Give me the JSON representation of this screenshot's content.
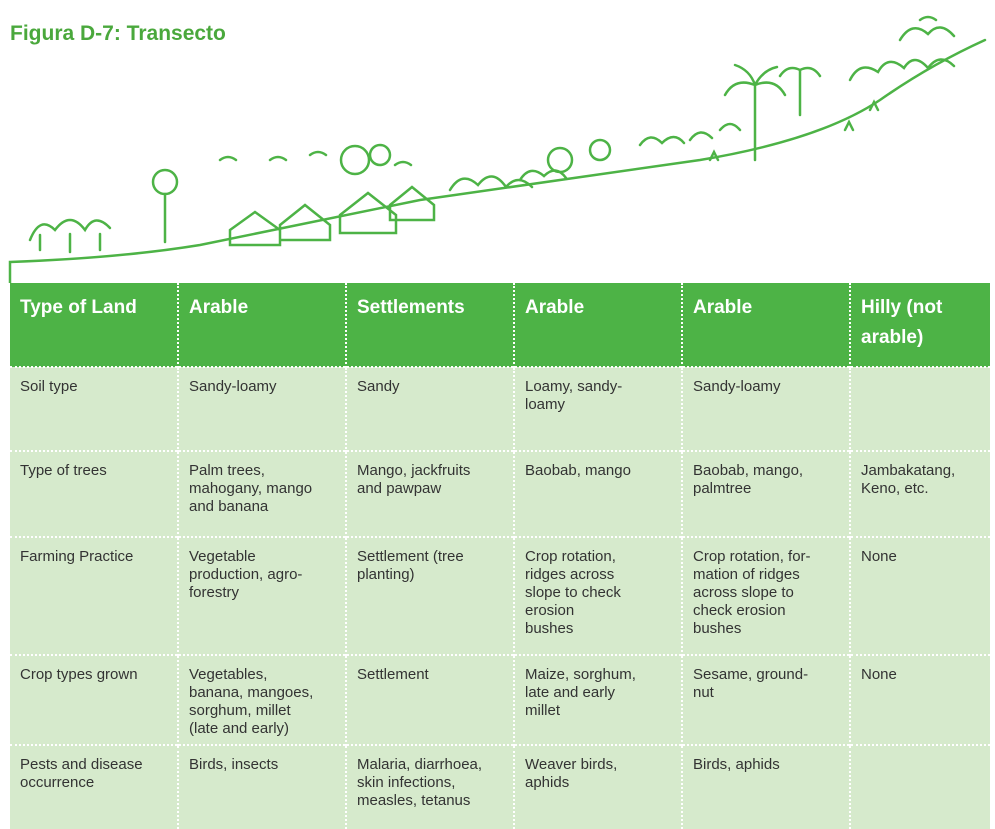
{
  "header": {
    "title": "Figura D-7: Transecto"
  },
  "table": {
    "header": [
      "Type of Land",
      "Arable",
      "Settlements",
      "Arable",
      "Arable",
      "Hilly (not\narable)"
    ],
    "rows": [
      [
        "Soil type",
        "Sandy-loamy",
        "Sandy",
        "Loamy, sandy-\nloamy",
        "Sandy-loamy",
        ""
      ],
      [
        "Type of trees",
        "Palm trees,\nmahogany, mango\nand banana",
        "Mango, jackfruits\nand pawpaw",
        "Baobab, mango",
        "Baobab, mango,\npalmtree",
        "Jambakatang,\nKeno, etc."
      ],
      [
        "Farming Practice",
        "Vegetable\nproduction, agro-\nforestry",
        "Settlement (tree\nplanting)",
        "Crop rotation,\nridges across\nslope to check\nerosion\nbushes",
        "Crop rotation, for-\nmation of ridges\nacross slope to\ncheck erosion\nbushes",
        "None"
      ],
      [
        "Crop types grown",
        "Vegetables,\nbanana, mangoes,\nsorghum, millet\n(late and early)",
        "Settlement",
        "Maize, sorghum,\nlate and early\nmillet",
        "Sesame, ground-\nnut",
        "None"
      ],
      [
        "Pests and disease\noccurrence",
        "Birds, insects",
        "Malaria, diarrhoea,\nskin infections,\nmeasles, tetanus",
        "Weaver birds,\naphids",
        "Birds, aphids",
        ""
      ]
    ]
  }
}
